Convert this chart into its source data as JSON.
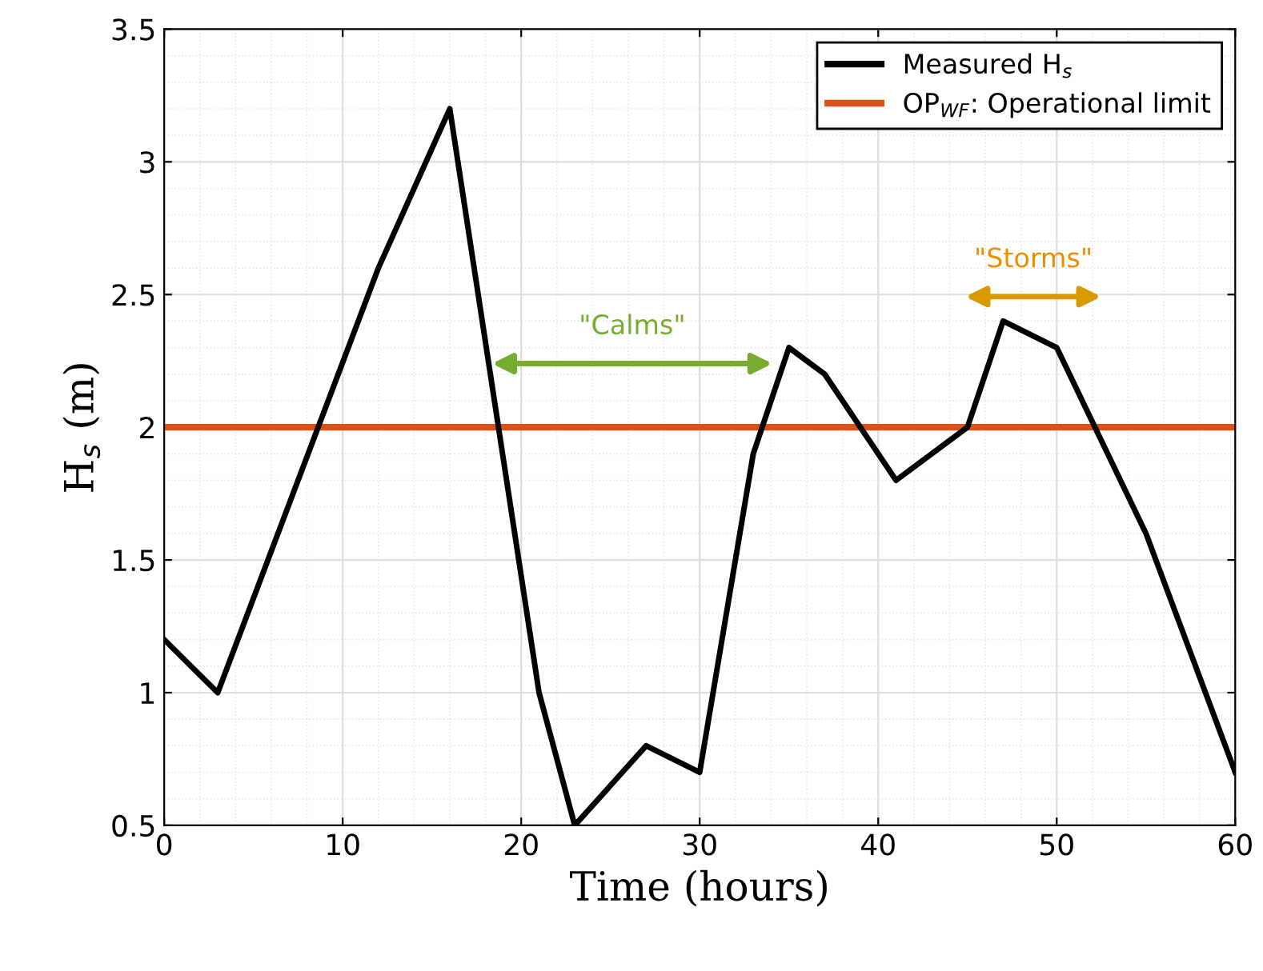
{
  "chart_data": {
    "type": "line",
    "xlabel": "Time (hours)",
    "ylabel": "H$_{s}$ (m)",
    "series": [
      {
        "name": "Measured H$_{s}$",
        "color": "#000000",
        "x": [
          0,
          3,
          12,
          16,
          21,
          23,
          27,
          30,
          33,
          35,
          37,
          41,
          45,
          47,
          50,
          55,
          60
        ],
        "values": [
          1.2,
          1.0,
          2.6,
          3.2,
          1.0,
          0.5,
          0.8,
          0.7,
          1.9,
          2.3,
          2.2,
          1.8,
          2.0,
          2.4,
          2.3,
          1.6,
          0.7
        ]
      }
    ],
    "ref_lines": [
      {
        "axis": "y",
        "value": 2,
        "label": "OP$_{WF}$: Operational limit",
        "color": "#d95319"
      }
    ],
    "annotations": [
      "\"Calms\"",
      "\"Storms\""
    ],
    "xlim": [
      0,
      60
    ],
    "ylim": [
      0.5,
      3.5
    ],
    "xticks": [
      0,
      10,
      20,
      30,
      40,
      50,
      60
    ],
    "yticks": [
      0.5,
      1,
      1.5,
      2,
      2.5,
      3,
      3.5
    ],
    "grid": true,
    "legend": "top right",
    "line_style": "solid",
    "marker": "none"
  }
}
